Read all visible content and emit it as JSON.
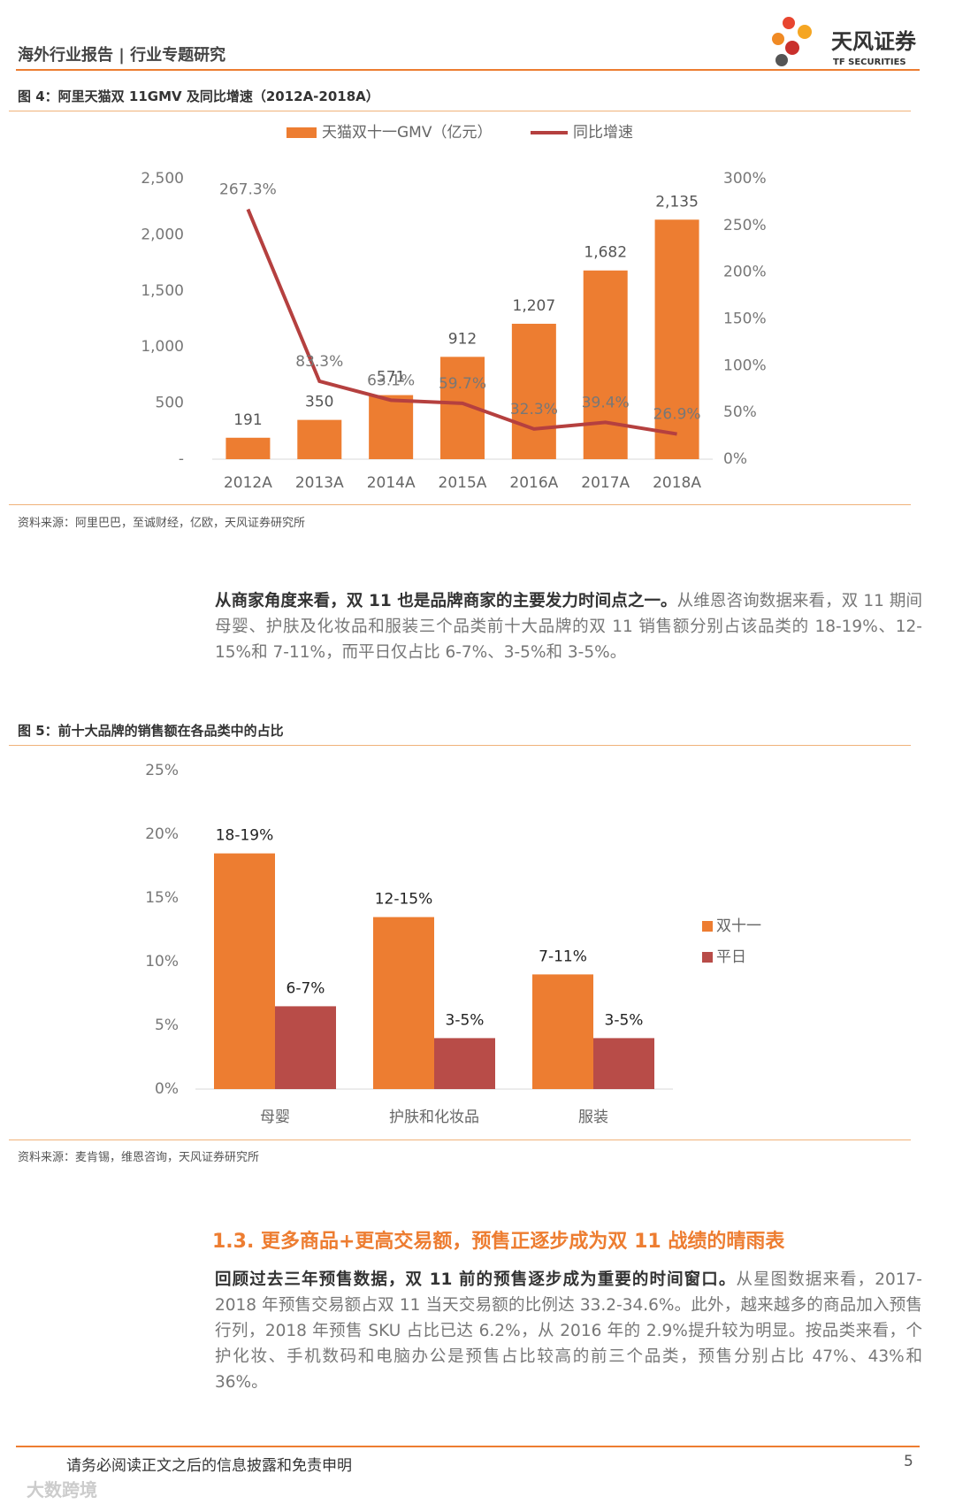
{
  "header": {
    "title": "海外行业报告 | 行业专题研究",
    "logo_cn": "天风证券",
    "logo_en": "TF SECURITIES"
  },
  "chart_data": [
    {
      "type": "combo",
      "title": "图 4：阿里天猫双 11GMV 及同比增速（2012A-2018A）",
      "categories": [
        "2012A",
        "2013A",
        "2014A",
        "2015A",
        "2016A",
        "2017A",
        "2018A"
      ],
      "series": [
        {
          "name": "天猫双十一GMV（亿元）",
          "color": "#ed7d31",
          "values": [
            191,
            350,
            571,
            912,
            1207,
            1682,
            2135
          ],
          "value_labels": [
            "191",
            "350",
            "571",
            "912",
            "1,207",
            "1,682",
            "2,135"
          ]
        },
        {
          "name": "同比增速",
          "color": "#b5403f",
          "axis": "y2",
          "values": [
            267.3,
            83.3,
            63.1,
            59.7,
            32.3,
            39.4,
            26.9
          ],
          "value_labels": [
            "267.3%",
            "83.3%",
            "63.1%",
            "59.7%",
            "32.3%",
            "39.4%",
            "26.9%"
          ]
        }
      ],
      "ylim": [
        0,
        2500
      ],
      "yticks": [
        {
          "value": 0,
          "label": "-"
        },
        500,
        {
          "value": 1000,
          "label": "1,000"
        },
        {
          "value": 1500,
          "label": "1,500"
        },
        {
          "value": 2000,
          "label": "2,000"
        },
        {
          "value": 2500,
          "label": "2,500"
        }
      ],
      "y2lim": [
        0,
        300
      ],
      "y2ticks": [
        {
          "value": 0,
          "label": "0%"
        },
        {
          "value": 50,
          "label": "50%"
        },
        {
          "value": 100,
          "label": "100%"
        },
        {
          "value": 150,
          "label": "150%"
        },
        {
          "value": 200,
          "label": "200%"
        },
        {
          "value": 250,
          "label": "250%"
        },
        {
          "value": 300,
          "label": "300%"
        }
      ],
      "grid": false,
      "legend": "top",
      "source": "资料来源：阿里巴巴，至诚财经，亿欧，天风证券研究所"
    },
    {
      "type": "bar",
      "title": "图 5：前十大品牌的销售额在各品类中的占比",
      "categories": [
        "母婴",
        "护肤和化妆品",
        "服装"
      ],
      "series": [
        {
          "name": "双十一",
          "color": "#ed7d31",
          "values": [
            18.5,
            13.5,
            9
          ],
          "value_labels": [
            "18-19%",
            "12-15%",
            "7-11%"
          ]
        },
        {
          "name": "平日",
          "color": "#b84c48",
          "values": [
            6.5,
            4,
            4
          ],
          "value_labels": [
            "6-7%",
            "3-5%",
            "3-5%"
          ]
        }
      ],
      "ylim": [
        0,
        25
      ],
      "yticks": [
        {
          "value": 0,
          "label": "0%"
        },
        {
          "value": 5,
          "label": "5%"
        },
        {
          "value": 10,
          "label": "10%"
        },
        {
          "value": 15,
          "label": "15%"
        },
        {
          "value": 20,
          "label": "20%"
        },
        {
          "value": 25,
          "label": "25%"
        }
      ],
      "grid": false,
      "legend": "right",
      "source": "资料来源：麦肯锡，维恩咨询，天风证券研究所"
    }
  ],
  "paragraph1": {
    "bold": "从商家角度来看，双 11 也是品牌商家的主要发力时间点之一。",
    "text": "从维恩咨询数据来看，双 11 期间母婴、护肤及化妆品和服装三个品类前十大品牌的双 11 销售额分别占该品类的 18-19%、12-15%和 7-11%，而平日仅占比 6-7%、3-5%和 3-5%。"
  },
  "section": {
    "title": "1.3. 更多商品+更高交易额，预售正逐步成为双 11 战绩的晴雨表"
  },
  "paragraph2": {
    "bold": "回顾过去三年预售数据，双 11 前的预售逐步成为重要的时间窗口。",
    "text": "从星图数据来看，2017-2018 年预售交易额占双 11 当天交易额的比例达 33.2-34.6%。此外，越来越多的商品加入预售行列，2018 年预售 SKU 占比已达 6.2%，从 2016 年的 2.9%提升较为明显。按品类来看，个护化妆、手机数码和电脑办公是预售占比较高的前三个品类，预售分别占比 47%、43%和 36%。"
  },
  "footer": {
    "text": "请务必阅读正文之后的信息披露和免责申明",
    "page": "5"
  },
  "watermark": "大数跨境"
}
